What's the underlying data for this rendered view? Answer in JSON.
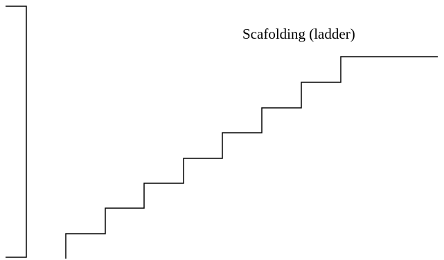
{
  "label": "Scafolding (ladder)",
  "colors": {
    "background": "#ffffff",
    "stroke": "#000000"
  }
}
